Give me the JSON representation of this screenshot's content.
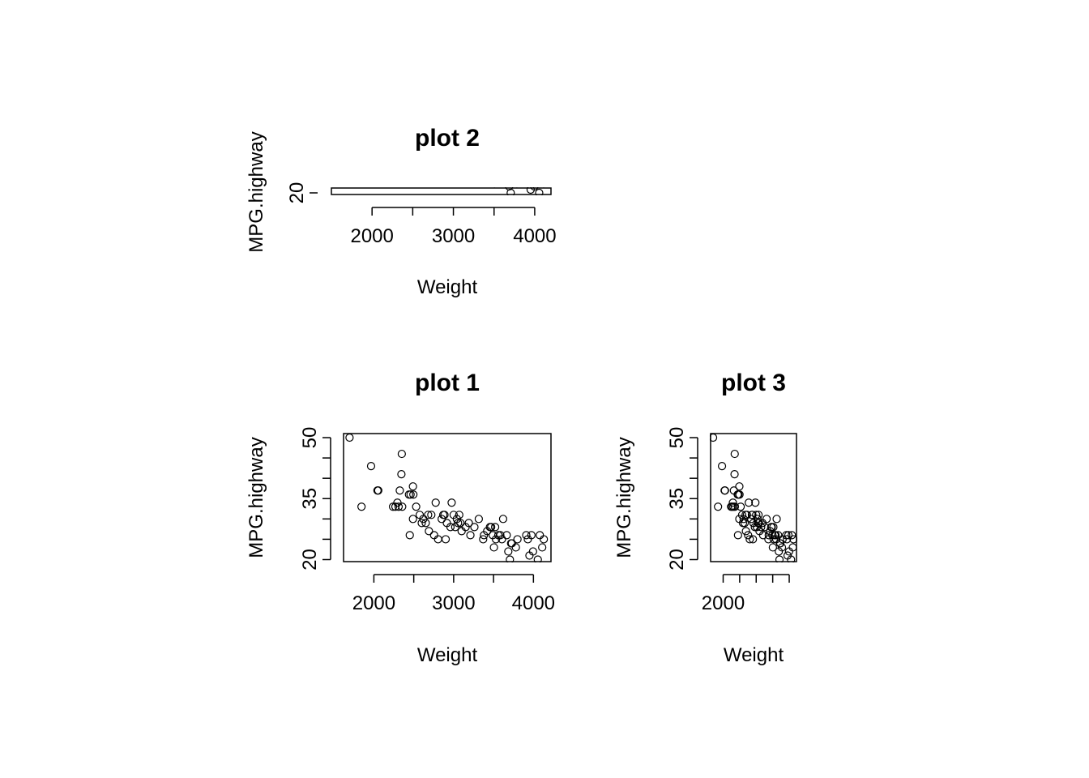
{
  "chart_data": [
    {
      "id": "plot2",
      "type": "scatter",
      "title": "plot 2",
      "xlabel": "Weight",
      "ylabel": "MPG.highway",
      "xlim": [
        1500,
        4200
      ],
      "ylim": [
        19.5,
        21.5
      ],
      "xticks": [
        2000,
        2500,
        3000,
        3500,
        4000
      ],
      "xtick_labels": [
        "2000",
        "",
        "3000",
        "",
        "4000"
      ],
      "yticks": [
        20
      ],
      "ytick_labels": [
        "20"
      ],
      "points_source": "shared"
    },
    {
      "id": "plot1",
      "type": "scatter",
      "title": "plot 1",
      "xlabel": "Weight",
      "ylabel": "MPG.highway",
      "xlim": [
        1620,
        4220
      ],
      "ylim": [
        19.5,
        51
      ],
      "xticks": [
        2000,
        2500,
        3000,
        3500,
        4000
      ],
      "xtick_labels": [
        "2000",
        "",
        "3000",
        "",
        "4000"
      ],
      "yticks": [
        20,
        25,
        30,
        35,
        40,
        45,
        50
      ],
      "ytick_labels": [
        "20",
        "",
        "",
        "35",
        "",
        "",
        "50"
      ],
      "points_source": "shared"
    },
    {
      "id": "plot3",
      "type": "scatter",
      "title": "plot 3",
      "xlabel": "Weight",
      "ylabel": "MPG.highway",
      "xlim": [
        1620,
        4220
      ],
      "ylim": [
        19.5,
        51
      ],
      "xticks": [
        2000,
        2500,
        3000,
        3500,
        4000
      ],
      "xtick_labels": [
        "2000",
        "",
        "",
        "",
        ""
      ],
      "yticks": [
        20,
        25,
        30,
        35,
        40,
        45,
        50
      ],
      "ytick_labels": [
        "20",
        "",
        "",
        "35",
        "",
        "",
        "50"
      ],
      "points_source": "shared"
    }
  ],
  "points": [
    [
      1695,
      50
    ],
    [
      1845,
      33
    ],
    [
      1965,
      43
    ],
    [
      2045,
      37
    ],
    [
      2055,
      37
    ],
    [
      2240,
      33
    ],
    [
      2270,
      33
    ],
    [
      2295,
      34
    ],
    [
      2310,
      33
    ],
    [
      2325,
      37
    ],
    [
      2345,
      41
    ],
    [
      2350,
      46
    ],
    [
      2355,
      33
    ],
    [
      2440,
      36
    ],
    [
      2450,
      26
    ],
    [
      2460,
      36
    ],
    [
      2490,
      38
    ],
    [
      2495,
      36
    ],
    [
      2490,
      30
    ],
    [
      2530,
      33
    ],
    [
      2575,
      31
    ],
    [
      2600,
      29
    ],
    [
      2620,
      30
    ],
    [
      2650,
      29
    ],
    [
      2680,
      31
    ],
    [
      2690,
      27
    ],
    [
      2720,
      31
    ],
    [
      2755,
      26
    ],
    [
      2775,
      34
    ],
    [
      2805,
      25
    ],
    [
      2850,
      30
    ],
    [
      2870,
      31
    ],
    [
      2885,
      31
    ],
    [
      2900,
      25
    ],
    [
      2915,
      29
    ],
    [
      2960,
      28
    ],
    [
      2975,
      34
    ],
    [
      3000,
      31
    ],
    [
      3020,
      28
    ],
    [
      3040,
      30
    ],
    [
      3055,
      29
    ],
    [
      3070,
      31
    ],
    [
      3085,
      29
    ],
    [
      3100,
      27
    ],
    [
      3150,
      28
    ],
    [
      3190,
      29
    ],
    [
      3210,
      26
    ],
    [
      3260,
      28
    ],
    [
      3315,
      30
    ],
    [
      3370,
      25
    ],
    [
      3380,
      26
    ],
    [
      3420,
      27
    ],
    [
      3455,
      28
    ],
    [
      3470,
      28
    ],
    [
      3490,
      26
    ],
    [
      3505,
      23
    ],
    [
      3520,
      28
    ],
    [
      3530,
      25
    ],
    [
      3560,
      26
    ],
    [
      3585,
      26
    ],
    [
      3605,
      25
    ],
    [
      3620,
      30
    ],
    [
      3665,
      26
    ],
    [
      3685,
      22
    ],
    [
      3705,
      20
    ],
    [
      3720,
      24
    ],
    [
      3730,
      24
    ],
    [
      3780,
      23
    ],
    [
      3800,
      25
    ],
    [
      3910,
      26
    ],
    [
      3930,
      25
    ],
    [
      3950,
      21
    ],
    [
      3975,
      26
    ],
    [
      3995,
      22
    ],
    [
      4055,
      20
    ],
    [
      4080,
      26
    ],
    [
      4110,
      23
    ],
    [
      4130,
      25
    ]
  ]
}
